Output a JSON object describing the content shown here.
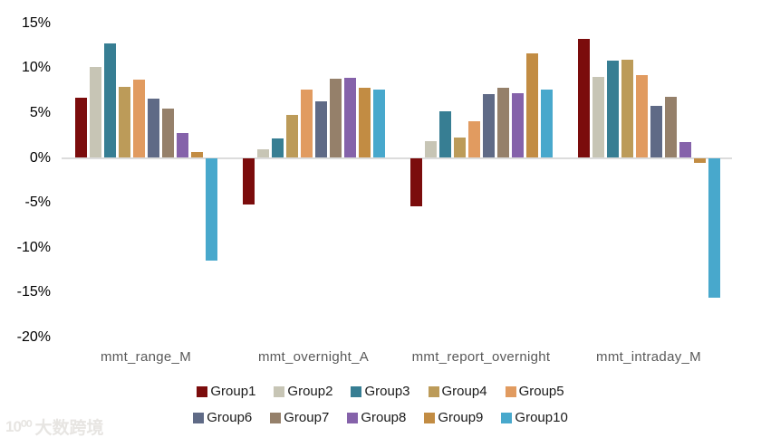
{
  "chart_data": {
    "type": "bar",
    "title": "",
    "xlabel": "",
    "ylabel": "",
    "categories": [
      "mmt_range_M",
      "mmt_overnight_A",
      "mmt_report_overnight",
      "mmt_intraday_M"
    ],
    "series": [
      {
        "name": "Group1",
        "color": "#7b0c0c",
        "values": [
          6.7,
          -5.2,
          -5.4,
          13.3
        ]
      },
      {
        "name": "Group2",
        "color": "#c7c5b5",
        "values": [
          10.1,
          1.0,
          1.9,
          9.0
        ]
      },
      {
        "name": "Group3",
        "color": "#377e93",
        "values": [
          12.8,
          2.2,
          5.2,
          10.8
        ]
      },
      {
        "name": "Group4",
        "color": "#bc9b59",
        "values": [
          7.9,
          4.8,
          2.3,
          10.9
        ]
      },
      {
        "name": "Group5",
        "color": "#e19b60",
        "values": [
          8.7,
          7.6,
          4.1,
          9.2
        ]
      },
      {
        "name": "Group6",
        "color": "#5f6a86",
        "values": [
          6.6,
          6.3,
          7.1,
          5.8
        ]
      },
      {
        "name": "Group7",
        "color": "#95806a",
        "values": [
          5.5,
          8.8,
          7.8,
          6.8
        ]
      },
      {
        "name": "Group8",
        "color": "#8562aa",
        "values": [
          2.8,
          8.9,
          7.2,
          1.8
        ]
      },
      {
        "name": "Group9",
        "color": "#c28c43",
        "values": [
          0.7,
          7.8,
          11.7,
          -0.6
        ]
      },
      {
        "name": "Group10",
        "color": "#48a8cc",
        "values": [
          -11.4,
          7.6,
          7.6,
          -15.6
        ]
      }
    ],
    "ylim": [
      -20,
      15
    ],
    "ytick_values": [
      15,
      10,
      5,
      0,
      -5,
      -10,
      -15,
      -20
    ],
    "ytick_labels": [
      "15%",
      "10%",
      "5%",
      "0%",
      "-5%",
      "-10%",
      "-15%",
      "-20%"
    ],
    "grid": "zero-line-only",
    "legend_position": "bottom",
    "legend_rows": [
      [
        0,
        1,
        2,
        3,
        4
      ],
      [
        5,
        6,
        7,
        8,
        9
      ]
    ]
  },
  "style_colors": {
    "zero_line": "#dcdcdc",
    "ytick_text": "#000000",
    "category_text": "#595959",
    "legend_text": "#1a1a1a"
  },
  "watermark": {
    "logo_text": "10⁰⁰",
    "brand_text": "大数跨境"
  }
}
